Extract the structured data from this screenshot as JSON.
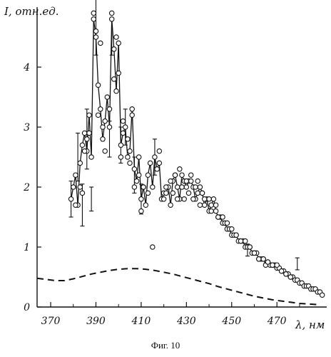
{
  "figure": {
    "caption": "Фиг. 10"
  },
  "chart_data": {
    "type": "scatter",
    "ylabel": "I, отн.ед.",
    "xlabel": "λ, нм",
    "xlim": [
      364,
      492
    ],
    "ylim": [
      0,
      5.0
    ],
    "x_ticks": [
      370,
      390,
      410,
      430,
      450,
      470
    ],
    "y_ticks": [
      0,
      1,
      2,
      3,
      4
    ],
    "grid": false,
    "colors": {
      "axis": "#111111",
      "marker_stroke": "#111111",
      "marker_fill": "#ffffff",
      "line": "#111111"
    },
    "series": [
      {
        "style": "markers-line",
        "x": [
          379,
          380,
          381,
          382,
          383,
          384,
          385,
          386,
          387,
          388,
          389,
          390,
          391,
          392,
          393,
          394,
          395,
          396,
          397,
          398,
          399,
          400,
          401,
          402,
          403,
          404,
          405,
          406,
          407,
          408,
          409,
          410,
          411,
          412,
          413,
          414,
          415,
          416,
          417,
          418,
          419,
          420,
          421,
          422,
          423,
          424,
          425,
          426,
          427,
          428,
          429,
          430,
          431,
          432,
          433,
          434,
          435,
          436,
          437,
          438,
          439,
          440,
          441,
          442,
          443,
          444,
          445,
          446,
          447,
          448,
          449,
          450,
          451,
          452,
          453,
          454,
          455,
          456,
          457,
          458,
          459,
          460,
          461,
          462,
          463,
          464,
          465,
          466,
          467,
          468,
          469,
          470,
          471,
          472,
          473,
          474,
          475,
          476,
          477,
          478,
          479,
          480,
          481,
          482,
          483,
          484,
          485,
          486,
          487,
          488,
          489,
          490
        ],
        "y": [
          1.8,
          2.0,
          2.2,
          1.7,
          2.4,
          2.7,
          2.9,
          2.6,
          3.2,
          2.5,
          4.8,
          4.5,
          3.7,
          3.3,
          2.8,
          3.1,
          3.5,
          3.0,
          4.8,
          4.3,
          3.6,
          4.4,
          2.7,
          2.9,
          3.0,
          2.5,
          2.6,
          3.3,
          2.3,
          2.1,
          2.5,
          1.8,
          2.0,
          1.7,
          2.2,
          2.4,
          2.0,
          2.5,
          2.3,
          2.4,
          1.8,
          1.9,
          1.9,
          2.0,
          1.7,
          2.1,
          2.2,
          2.0,
          1.8,
          2.2,
          2.1,
          2.0,
          2.1,
          2.1,
          2.0,
          1.8,
          1.9,
          2.0,
          1.9,
          1.7,
          1.8,
          1.6,
          1.7,
          1.8,
          1.6,
          1.5,
          1.5,
          1.4,
          1.4,
          1.3,
          1.3,
          1.2,
          1.2,
          1.2,
          1.1,
          1.1,
          1.1,
          1.0,
          1.0,
          1.0,
          0.9,
          0.9,
          0.9,
          0.8,
          0.8,
          0.8,
          0.7,
          0.75,
          0.7,
          0.7,
          0.7,
          0.65,
          0.65,
          0.6,
          0.6,
          0.55,
          0.55,
          0.5,
          0.5,
          0.45,
          0.45,
          0.4,
          0.4,
          0.35,
          0.35,
          0.35,
          0.3,
          0.3,
          0.3,
          0.25,
          0.25,
          0.2
        ]
      },
      {
        "style": "markers",
        "x": [
          381,
          383,
          384,
          385,
          386,
          387,
          389,
          390,
          391,
          392,
          393,
          394,
          396,
          397,
          398,
          399,
          400,
          401,
          402,
          404,
          405,
          406,
          407,
          409,
          410,
          411,
          413,
          415,
          418,
          420,
          421,
          423,
          424,
          425,
          426,
          427,
          428,
          429,
          430,
          431,
          432,
          433,
          434,
          435,
          436,
          437,
          438,
          440,
          441,
          443,
          444,
          446,
          448,
          450,
          452,
          454,
          456,
          458,
          460,
          462,
          464,
          466,
          468,
          470,
          472,
          474,
          476
        ],
        "y": [
          1.7,
          2.0,
          1.9,
          2.6,
          2.8,
          2.9,
          4.9,
          4.6,
          3.2,
          4.4,
          3.0,
          2.6,
          3.3,
          4.9,
          3.8,
          4.5,
          3.9,
          2.5,
          3.1,
          2.8,
          2.4,
          3.2,
          2.0,
          2.2,
          1.6,
          2.0,
          1.9,
          1.0,
          2.6,
          1.8,
          2.0,
          2.1,
          1.9,
          2.2,
          1.8,
          2.3,
          2.0,
          1.8,
          2.1,
          1.9,
          2.2,
          1.8,
          2.0,
          2.1,
          1.7,
          1.9,
          1.8,
          1.8,
          1.6,
          1.7,
          1.5,
          1.5,
          1.4,
          1.3,
          1.2,
          1.1,
          1.1,
          1.0,
          0.9,
          0.8,
          0.8,
          0.75,
          0.7,
          0.7,
          0.6,
          0.55,
          0.5
        ]
      },
      {
        "style": "errorbars",
        "x": [
          379,
          382,
          384,
          386,
          388,
          390,
          396,
          397,
          401,
          403,
          407,
          410,
          416,
          457,
          479
        ],
        "y": [
          1.8,
          2.5,
          1.7,
          2.8,
          1.8,
          4.7,
          2.8,
          4.5,
          2.7,
          3.0,
          2.2,
          1.8,
          2.5,
          0.95,
          0.72
        ],
        "err": [
          0.3,
          0.4,
          0.35,
          0.5,
          0.2,
          0.5,
          0.3,
          0.3,
          0.3,
          0.3,
          0.3,
          0.25,
          0.3,
          0.1,
          0.1
        ]
      },
      {
        "style": "dashed",
        "x": [
          364,
          368,
          372,
          376,
          380,
          384,
          388,
          392,
          396,
          400,
          404,
          408,
          412,
          416,
          420,
          424,
          428,
          432,
          436,
          440,
          444,
          448,
          452,
          456,
          460,
          464,
          468,
          472,
          476,
          480,
          484,
          488
        ],
        "y": [
          0.48,
          0.46,
          0.44,
          0.44,
          0.47,
          0.51,
          0.55,
          0.58,
          0.61,
          0.63,
          0.64,
          0.64,
          0.63,
          0.61,
          0.58,
          0.55,
          0.51,
          0.47,
          0.43,
          0.39,
          0.34,
          0.3,
          0.26,
          0.22,
          0.18,
          0.15,
          0.12,
          0.1,
          0.08,
          0.06,
          0.05,
          0.04
        ]
      }
    ]
  }
}
